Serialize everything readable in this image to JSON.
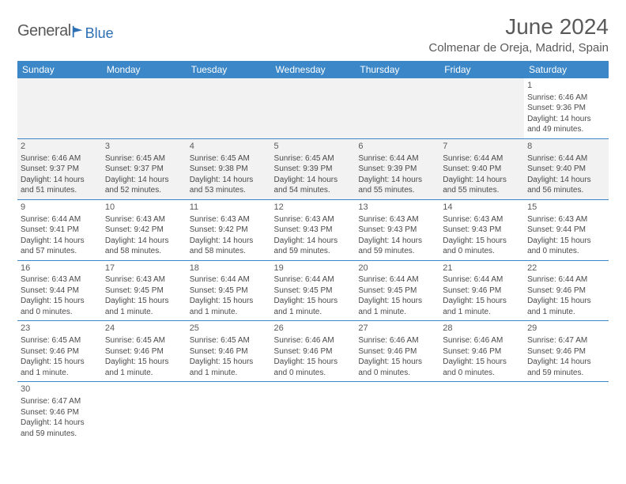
{
  "logo": {
    "general": "General",
    "blue": "Blue",
    "icon_color": "#2d6fb5"
  },
  "title": "June 2024",
  "location": "Colmenar de Oreja, Madrid, Spain",
  "headers": [
    "Sunday",
    "Monday",
    "Tuesday",
    "Wednesday",
    "Thursday",
    "Friday",
    "Saturday"
  ],
  "colors": {
    "header_bg": "#3b87c8",
    "header_text": "#ffffff",
    "border": "#3b87c8",
    "text": "#4a4a4a",
    "title_text": "#5a5a5a"
  },
  "weeks": [
    [
      null,
      null,
      null,
      null,
      null,
      null,
      {
        "n": "1",
        "sr": "Sunrise: 6:46 AM",
        "ss": "Sunset: 9:36 PM",
        "dl": "Daylight: 14 hours and 49 minutes."
      }
    ],
    [
      {
        "n": "2",
        "sr": "Sunrise: 6:46 AM",
        "ss": "Sunset: 9:37 PM",
        "dl": "Daylight: 14 hours and 51 minutes."
      },
      {
        "n": "3",
        "sr": "Sunrise: 6:45 AM",
        "ss": "Sunset: 9:37 PM",
        "dl": "Daylight: 14 hours and 52 minutes."
      },
      {
        "n": "4",
        "sr": "Sunrise: 6:45 AM",
        "ss": "Sunset: 9:38 PM",
        "dl": "Daylight: 14 hours and 53 minutes."
      },
      {
        "n": "5",
        "sr": "Sunrise: 6:45 AM",
        "ss": "Sunset: 9:39 PM",
        "dl": "Daylight: 14 hours and 54 minutes."
      },
      {
        "n": "6",
        "sr": "Sunrise: 6:44 AM",
        "ss": "Sunset: 9:39 PM",
        "dl": "Daylight: 14 hours and 55 minutes."
      },
      {
        "n": "7",
        "sr": "Sunrise: 6:44 AM",
        "ss": "Sunset: 9:40 PM",
        "dl": "Daylight: 14 hours and 55 minutes."
      },
      {
        "n": "8",
        "sr": "Sunrise: 6:44 AM",
        "ss": "Sunset: 9:40 PM",
        "dl": "Daylight: 14 hours and 56 minutes."
      }
    ],
    [
      {
        "n": "9",
        "sr": "Sunrise: 6:44 AM",
        "ss": "Sunset: 9:41 PM",
        "dl": "Daylight: 14 hours and 57 minutes."
      },
      {
        "n": "10",
        "sr": "Sunrise: 6:43 AM",
        "ss": "Sunset: 9:42 PM",
        "dl": "Daylight: 14 hours and 58 minutes."
      },
      {
        "n": "11",
        "sr": "Sunrise: 6:43 AM",
        "ss": "Sunset: 9:42 PM",
        "dl": "Daylight: 14 hours and 58 minutes."
      },
      {
        "n": "12",
        "sr": "Sunrise: 6:43 AM",
        "ss": "Sunset: 9:43 PM",
        "dl": "Daylight: 14 hours and 59 minutes."
      },
      {
        "n": "13",
        "sr": "Sunrise: 6:43 AM",
        "ss": "Sunset: 9:43 PM",
        "dl": "Daylight: 14 hours and 59 minutes."
      },
      {
        "n": "14",
        "sr": "Sunrise: 6:43 AM",
        "ss": "Sunset: 9:43 PM",
        "dl": "Daylight: 15 hours and 0 minutes."
      },
      {
        "n": "15",
        "sr": "Sunrise: 6:43 AM",
        "ss": "Sunset: 9:44 PM",
        "dl": "Daylight: 15 hours and 0 minutes."
      }
    ],
    [
      {
        "n": "16",
        "sr": "Sunrise: 6:43 AM",
        "ss": "Sunset: 9:44 PM",
        "dl": "Daylight: 15 hours and 0 minutes."
      },
      {
        "n": "17",
        "sr": "Sunrise: 6:43 AM",
        "ss": "Sunset: 9:45 PM",
        "dl": "Daylight: 15 hours and 1 minute."
      },
      {
        "n": "18",
        "sr": "Sunrise: 6:44 AM",
        "ss": "Sunset: 9:45 PM",
        "dl": "Daylight: 15 hours and 1 minute."
      },
      {
        "n": "19",
        "sr": "Sunrise: 6:44 AM",
        "ss": "Sunset: 9:45 PM",
        "dl": "Daylight: 15 hours and 1 minute."
      },
      {
        "n": "20",
        "sr": "Sunrise: 6:44 AM",
        "ss": "Sunset: 9:45 PM",
        "dl": "Daylight: 15 hours and 1 minute."
      },
      {
        "n": "21",
        "sr": "Sunrise: 6:44 AM",
        "ss": "Sunset: 9:46 PM",
        "dl": "Daylight: 15 hours and 1 minute."
      },
      {
        "n": "22",
        "sr": "Sunrise: 6:44 AM",
        "ss": "Sunset: 9:46 PM",
        "dl": "Daylight: 15 hours and 1 minute."
      }
    ],
    [
      {
        "n": "23",
        "sr": "Sunrise: 6:45 AM",
        "ss": "Sunset: 9:46 PM",
        "dl": "Daylight: 15 hours and 1 minute."
      },
      {
        "n": "24",
        "sr": "Sunrise: 6:45 AM",
        "ss": "Sunset: 9:46 PM",
        "dl": "Daylight: 15 hours and 1 minute."
      },
      {
        "n": "25",
        "sr": "Sunrise: 6:45 AM",
        "ss": "Sunset: 9:46 PM",
        "dl": "Daylight: 15 hours and 1 minute."
      },
      {
        "n": "26",
        "sr": "Sunrise: 6:46 AM",
        "ss": "Sunset: 9:46 PM",
        "dl": "Daylight: 15 hours and 0 minutes."
      },
      {
        "n": "27",
        "sr": "Sunrise: 6:46 AM",
        "ss": "Sunset: 9:46 PM",
        "dl": "Daylight: 15 hours and 0 minutes."
      },
      {
        "n": "28",
        "sr": "Sunrise: 6:46 AM",
        "ss": "Sunset: 9:46 PM",
        "dl": "Daylight: 15 hours and 0 minutes."
      },
      {
        "n": "29",
        "sr": "Sunrise: 6:47 AM",
        "ss": "Sunset: 9:46 PM",
        "dl": "Daylight: 14 hours and 59 minutes."
      }
    ],
    [
      {
        "n": "30",
        "sr": "Sunrise: 6:47 AM",
        "ss": "Sunset: 9:46 PM",
        "dl": "Daylight: 14 hours and 59 minutes."
      },
      null,
      null,
      null,
      null,
      null,
      null
    ]
  ]
}
